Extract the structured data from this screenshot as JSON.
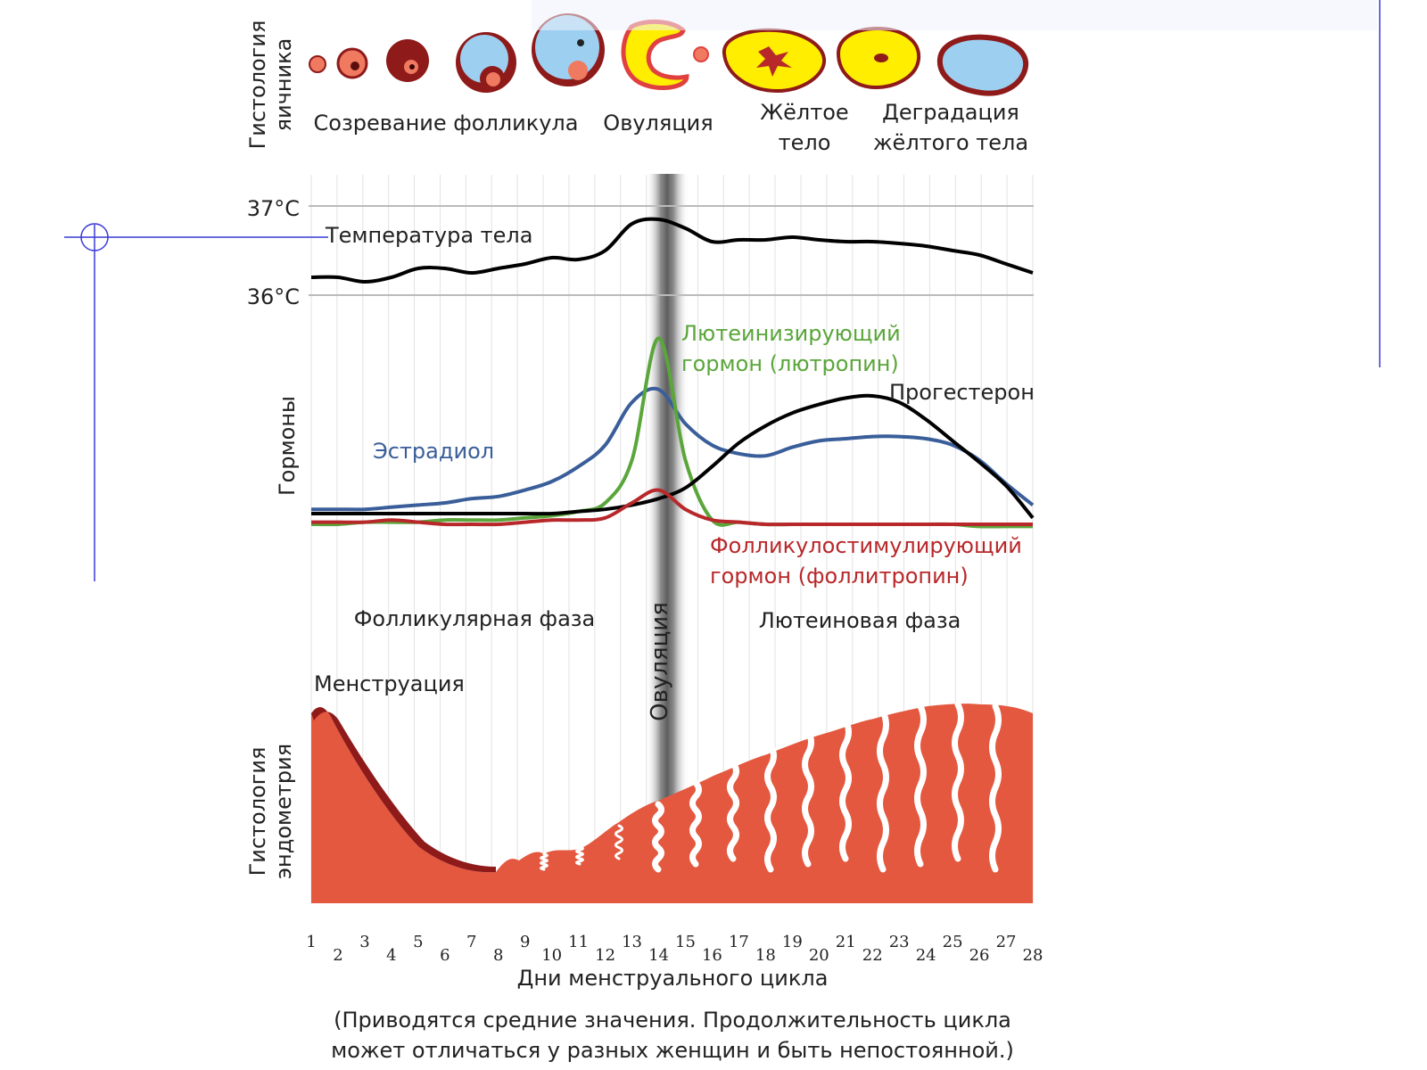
{
  "labels": {
    "ovary_histology_line1": "Гистология",
    "ovary_histology_line2": "яичника",
    "follicle_maturation": "Созревание фолликула",
    "ovulation_top": "Овуляция",
    "corpus_luteum_line1": "Жёлтое",
    "corpus_luteum_line2": "тело",
    "degradation_line1": "Деградация",
    "degradation_line2": "жёлтого тела",
    "temp_37": "37°C",
    "temp_36": "36°C",
    "body_temperature": "Температура тела",
    "hormones_axis": "Гормоны",
    "lh_line1": "Лютеинизирующий",
    "lh_line2": "гормон (лютропин)",
    "progesterone": "Прогестерон",
    "estradiol": "Эстрадиол",
    "fsh_line1": "Фолликулостимулирующий",
    "fsh_line2": "гормон (фоллитропин)",
    "follicular_phase": "Фолликулярная фаза",
    "luteal_phase": "Лютеиновая фаза",
    "ovulation_band": "Овуляция",
    "menstruation": "Менструация",
    "endometrium_line1": "Гистология",
    "endometrium_line2": "эндометрия",
    "x_axis": "Дни менструального цикла",
    "note_line1": "(Приводятся средние значения. Продолжительность цикла",
    "note_line2": "может отличаться у разных женщин и быть непостоянной.)"
  },
  "days": [
    "1",
    "2",
    "3",
    "4",
    "5",
    "6",
    "7",
    "8",
    "9",
    "10",
    "11",
    "12",
    "13",
    "14",
    "15",
    "16",
    "17",
    "18",
    "19",
    "20",
    "21",
    "22",
    "23",
    "24",
    "25",
    "26",
    "27",
    "28"
  ],
  "colors": {
    "temperature": "#000000",
    "estradiol": "#3a5e9a",
    "lh": "#5aa63a",
    "progesterone": "#000000",
    "fsh": "#b8282b",
    "endometrium": "#e3583f",
    "endometrium_dark": "#8e1a1a",
    "corpus_luteum": "#ffee00",
    "follicle_fluid": "#9ccff0"
  },
  "chart_data": {
    "type": "line",
    "x": [
      1,
      2,
      3,
      4,
      5,
      6,
      7,
      8,
      9,
      10,
      11,
      12,
      13,
      14,
      15,
      16,
      17,
      18,
      19,
      20,
      21,
      22,
      23,
      24,
      25,
      26,
      27,
      28
    ],
    "xlabel": "Дни менструального цикла",
    "temperature": {
      "ylim": [
        36,
        37
      ],
      "values": [
        36.2,
        36.2,
        36.15,
        36.2,
        36.3,
        36.3,
        36.25,
        36.3,
        36.35,
        36.42,
        36.4,
        36.5,
        36.8,
        36.85,
        36.75,
        36.6,
        36.62,
        36.62,
        36.65,
        36.62,
        36.6,
        36.6,
        36.58,
        36.55,
        36.5,
        36.45,
        36.35,
        36.25
      ]
    },
    "series": [
      {
        "name": "Эстрадиол",
        "values": [
          0.12,
          0.12,
          0.12,
          0.13,
          0.14,
          0.15,
          0.17,
          0.18,
          0.21,
          0.25,
          0.32,
          0.42,
          0.62,
          0.68,
          0.52,
          0.42,
          0.38,
          0.37,
          0.41,
          0.44,
          0.45,
          0.46,
          0.46,
          0.45,
          0.42,
          0.35,
          0.24,
          0.14
        ]
      },
      {
        "name": "Лютеинизирующий гормон (лютропин)",
        "values": [
          0.05,
          0.05,
          0.06,
          0.06,
          0.06,
          0.07,
          0.07,
          0.07,
          0.08,
          0.09,
          0.11,
          0.15,
          0.35,
          0.92,
          0.35,
          0.07,
          0.06,
          0.05,
          0.05,
          0.05,
          0.05,
          0.05,
          0.05,
          0.05,
          0.05,
          0.04,
          0.04,
          0.04
        ]
      },
      {
        "name": "Прогестерон",
        "values": [
          0.1,
          0.1,
          0.1,
          0.1,
          0.1,
          0.1,
          0.1,
          0.1,
          0.1,
          0.1,
          0.11,
          0.12,
          0.14,
          0.17,
          0.22,
          0.32,
          0.43,
          0.51,
          0.57,
          0.61,
          0.64,
          0.65,
          0.62,
          0.54,
          0.44,
          0.34,
          0.23,
          0.08
        ]
      },
      {
        "name": "Фолликулостимулирующий гормон (фоллитропин)",
        "values": [
          0.06,
          0.06,
          0.06,
          0.07,
          0.06,
          0.05,
          0.05,
          0.05,
          0.06,
          0.07,
          0.07,
          0.08,
          0.15,
          0.21,
          0.12,
          0.07,
          0.06,
          0.05,
          0.05,
          0.05,
          0.05,
          0.05,
          0.05,
          0.05,
          0.05,
          0.05,
          0.05,
          0.05
        ]
      }
    ]
  }
}
